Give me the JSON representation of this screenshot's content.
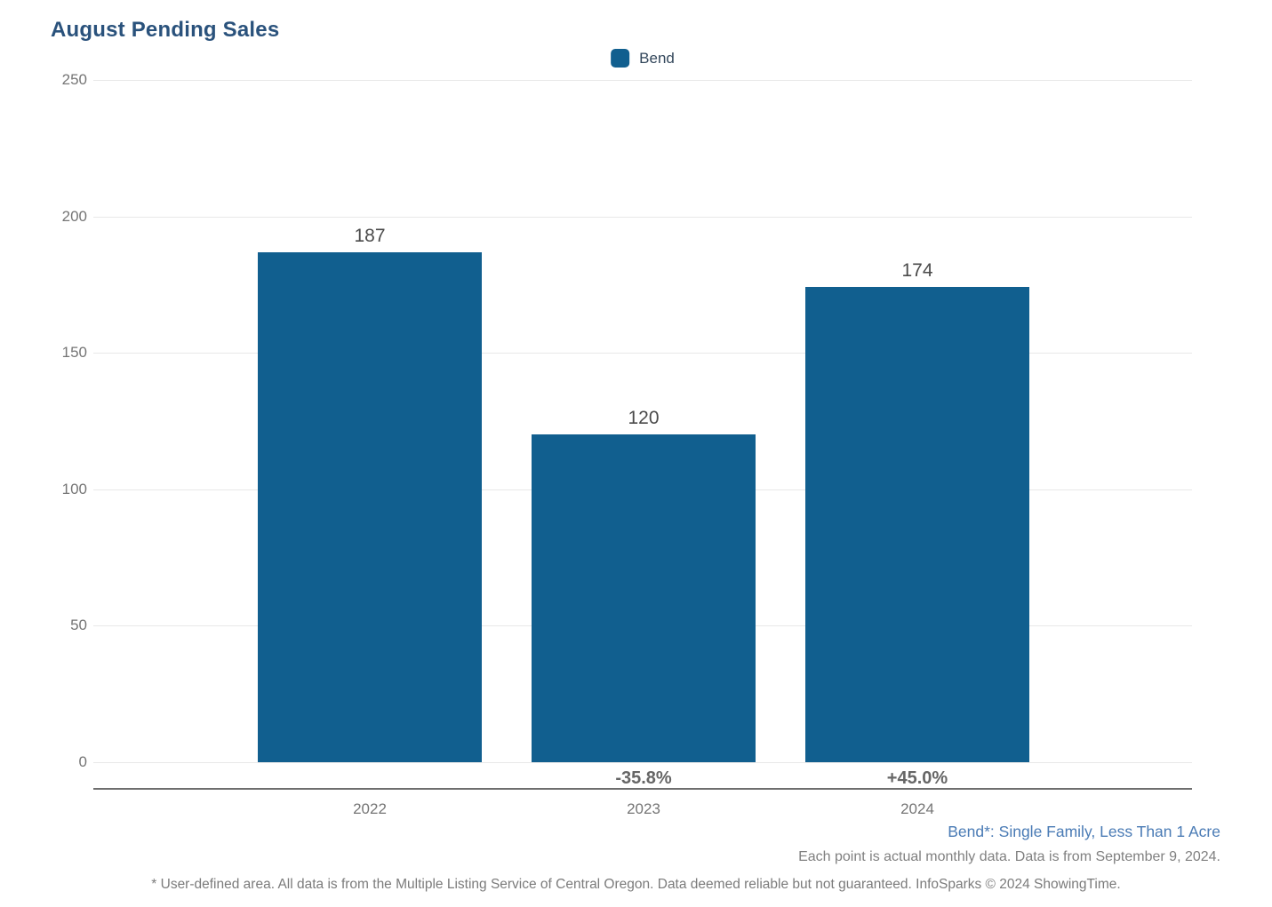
{
  "title": "August Pending Sales",
  "legend": {
    "label": "Bend",
    "swatch_color": "#115f8f"
  },
  "colors": {
    "bar": "#115f8f",
    "title": "#2a527c",
    "annotation_blue": "#4a7bb5",
    "grid": "#e8e8e8",
    "axis": "#6e6e6e",
    "tick_label": "#757575",
    "value_label": "#4a4a4a",
    "percent_label": "#666666"
  },
  "chart_data": {
    "type": "bar",
    "title": "August Pending Sales",
    "categories": [
      "2022",
      "2023",
      "2024"
    ],
    "series": [
      {
        "name": "Bend",
        "values": [
          187,
          120,
          174
        ]
      }
    ],
    "change_labels": [
      "",
      "-35.8%",
      "+45.0%"
    ],
    "ylim": [
      0,
      250
    ],
    "yticks": [
      0,
      50,
      100,
      150,
      200,
      250
    ],
    "grid": true,
    "legend_position": "top-center"
  },
  "annotations": {
    "segment_note": "Bend*: Single Family, Less Than 1 Acre",
    "data_note": "Each point is actual monthly data. Data is from September 9, 2024.",
    "footer_note": "* User-defined area. All data is from the Multiple Listing Service of Central Oregon. Data deemed reliable but not guaranteed. InfoSparks © 2024 ShowingTime."
  }
}
